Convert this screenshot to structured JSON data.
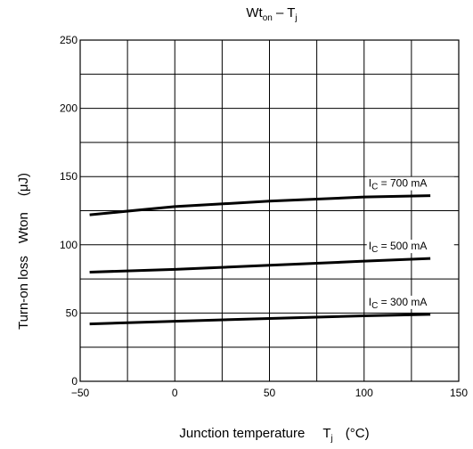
{
  "chart_data": {
    "type": "line",
    "title": {
      "main": "Wt",
      "sub": "on",
      "rest": " – T",
      "sub2": "j"
    },
    "xlabel": {
      "text": "Junction temperature",
      "sym": "T",
      "sub": "j",
      "unit": "(°C)"
    },
    "ylabel": {
      "text": "Turn-on loss",
      "sym": "Wton",
      "unit": "(μJ)"
    },
    "xlim": [
      -50,
      150
    ],
    "ylim": [
      0,
      250
    ],
    "x_ticks": [
      "−50",
      "0",
      "50",
      "100",
      "150"
    ],
    "y_ticks": [
      "0",
      "50",
      "100",
      "150",
      "200",
      "250"
    ],
    "grid": true,
    "series": [
      {
        "name": {
          "pre": "I",
          "sub": "C",
          "post": " = 700 mA"
        },
        "x": [
          -45,
          0,
          50,
          100,
          135
        ],
        "y": [
          122,
          128,
          132,
          135,
          136
        ]
      },
      {
        "name": {
          "pre": "I",
          "sub": "C",
          "post": " = 500 mA"
        },
        "x": [
          -45,
          0,
          50,
          100,
          135
        ],
        "y": [
          80,
          82,
          85,
          88,
          90
        ]
      },
      {
        "name": {
          "pre": "I",
          "sub": "C",
          "post": " = 300 mA"
        },
        "x": [
          -45,
          0,
          50,
          100,
          135
        ],
        "y": [
          42,
          44,
          46,
          48,
          49
        ]
      }
    ]
  }
}
